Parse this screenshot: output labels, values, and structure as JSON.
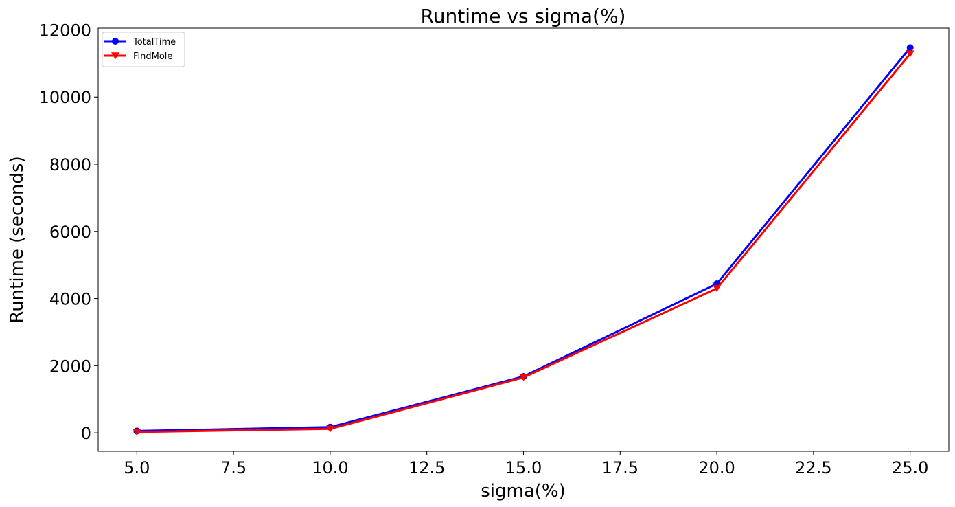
{
  "chart_data": {
    "type": "line",
    "title": "Runtime vs sigma(%)",
    "xlabel": "sigma(%)",
    "ylabel": "Runtime (seconds)",
    "xlim": [
      4.0,
      26.0
    ],
    "ylim": [
      -550,
      12050
    ],
    "xticks": [
      5.0,
      7.5,
      10.0,
      12.5,
      15.0,
      17.5,
      20.0,
      22.5,
      25.0
    ],
    "xtick_labels": [
      "5.0",
      "7.5",
      "10.0",
      "12.5",
      "15.0",
      "17.5",
      "20.0",
      "22.5",
      "25.0"
    ],
    "yticks": [
      0,
      2000,
      4000,
      6000,
      8000,
      10000,
      12000
    ],
    "ytick_labels": [
      "0",
      "2000",
      "4000",
      "6000",
      "8000",
      "10000",
      "12000"
    ],
    "grid": false,
    "legend_position": "top-left",
    "x": [
      5.0,
      10.0,
      15.0,
      20.0,
      25.0
    ],
    "series": [
      {
        "name": "TotalTime",
        "values": [
          55,
          170,
          1680,
          4440,
          11470
        ],
        "color": "#0000ff",
        "marker": "circle"
      },
      {
        "name": "FindMole",
        "values": [
          25,
          120,
          1650,
          4300,
          11290
        ],
        "color": "#ff0000",
        "marker": "triangle-down"
      }
    ]
  }
}
